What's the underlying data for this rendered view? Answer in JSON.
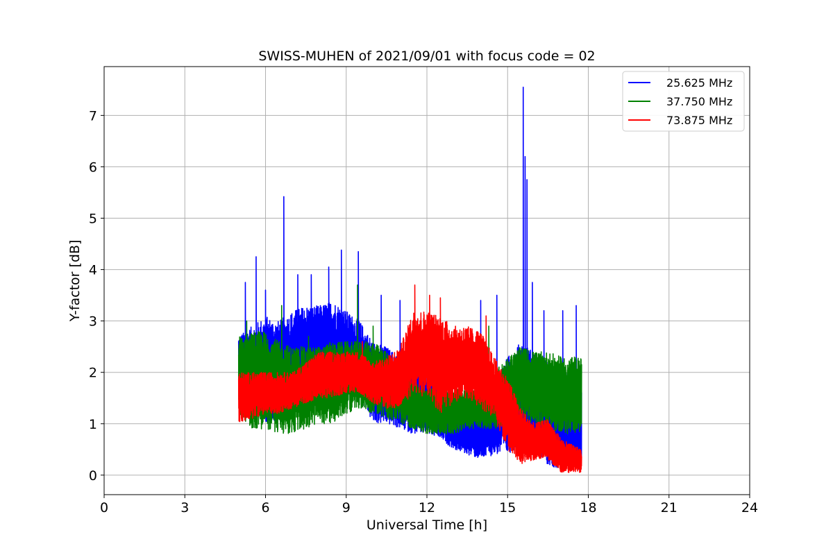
{
  "chart_data": {
    "type": "line",
    "title": "SWISS-MUHEN of 2021/09/01 with focus code = 02",
    "xlabel": "Universal Time [h]",
    "ylabel": "Y-factor [dB]",
    "xlim": [
      0,
      24
    ],
    "ylim": [
      -0.38,
      7.95
    ],
    "xticks": [
      0,
      3,
      6,
      9,
      12,
      15,
      18,
      21,
      24
    ],
    "xtick_labels": [
      "0",
      "3",
      "6",
      "9",
      "12",
      "15",
      "18",
      "21",
      "24"
    ],
    "yticks": [
      0,
      1,
      2,
      3,
      4,
      5,
      6,
      7
    ],
    "ytick_labels": [
      "0",
      "1",
      "2",
      "3",
      "4",
      "5",
      "6",
      "7"
    ],
    "grid": true,
    "legend_position": "top-right",
    "series": [
      {
        "name": "25.625 MHz",
        "color": "#0000ff",
        "x_range": [
          5.0,
          17.75
        ],
        "band": [
          [
            5.0,
            1.9,
            2.7
          ],
          [
            5.5,
            1.2,
            2.9
          ],
          [
            6.0,
            1.0,
            3.1
          ],
          [
            6.5,
            1.0,
            3.0
          ],
          [
            7.0,
            1.2,
            3.2
          ],
          [
            7.5,
            1.5,
            3.3
          ],
          [
            8.0,
            1.6,
            3.3
          ],
          [
            8.5,
            1.6,
            3.4
          ],
          [
            9.0,
            1.6,
            3.2
          ],
          [
            9.5,
            1.5,
            3.0
          ],
          [
            10.0,
            1.0,
            2.6
          ],
          [
            10.5,
            1.0,
            2.5
          ],
          [
            11.0,
            0.9,
            2.3
          ],
          [
            11.5,
            0.8,
            2.2
          ],
          [
            12.0,
            0.8,
            2.0
          ],
          [
            12.5,
            0.7,
            1.8
          ],
          [
            13.0,
            0.5,
            1.6
          ],
          [
            13.5,
            0.4,
            1.5
          ],
          [
            14.0,
            0.3,
            1.5
          ],
          [
            14.5,
            0.4,
            1.8
          ],
          [
            15.0,
            0.4,
            2.3
          ],
          [
            15.5,
            0.6,
            2.6
          ],
          [
            16.0,
            0.5,
            2.4
          ],
          [
            16.5,
            0.2,
            2.2
          ],
          [
            17.0,
            0.1,
            2.0
          ],
          [
            17.75,
            0.1,
            2.0
          ]
        ],
        "spikes": [
          [
            5.25,
            3.75
          ],
          [
            5.65,
            4.25
          ],
          [
            6.0,
            3.6
          ],
          [
            6.68,
            5.42
          ],
          [
            7.2,
            3.9
          ],
          [
            7.7,
            3.9
          ],
          [
            8.35,
            4.05
          ],
          [
            8.82,
            4.38
          ],
          [
            9.45,
            4.35
          ],
          [
            10.3,
            3.5
          ],
          [
            11.0,
            3.4
          ],
          [
            14.0,
            3.4
          ],
          [
            14.6,
            3.5
          ],
          [
            15.58,
            7.55
          ],
          [
            15.65,
            6.2
          ],
          [
            15.72,
            5.75
          ],
          [
            15.92,
            3.75
          ],
          [
            16.35,
            3.2
          ],
          [
            17.05,
            3.2
          ],
          [
            17.55,
            3.3
          ]
        ]
      },
      {
        "name": "37.750 MHz",
        "color": "#008000",
        "x_range": [
          5.0,
          17.75
        ],
        "band": [
          [
            5.0,
            1.2,
            2.7
          ],
          [
            5.5,
            0.9,
            2.8
          ],
          [
            6.0,
            0.9,
            2.8
          ],
          [
            6.5,
            0.8,
            2.6
          ],
          [
            7.0,
            0.8,
            2.5
          ],
          [
            7.5,
            0.9,
            2.5
          ],
          [
            8.0,
            1.0,
            2.5
          ],
          [
            8.5,
            1.0,
            2.6
          ],
          [
            9.0,
            1.2,
            2.6
          ],
          [
            9.5,
            1.3,
            2.6
          ],
          [
            10.0,
            1.2,
            2.6
          ],
          [
            10.5,
            1.1,
            2.4
          ],
          [
            11.0,
            1.0,
            2.1
          ],
          [
            11.5,
            0.9,
            1.8
          ],
          [
            12.0,
            0.8,
            1.7
          ],
          [
            12.5,
            0.8,
            1.7
          ],
          [
            13.0,
            0.8,
            1.7
          ],
          [
            13.5,
            0.9,
            1.7
          ],
          [
            14.0,
            0.9,
            1.8
          ],
          [
            14.5,
            0.9,
            2.0
          ],
          [
            15.0,
            1.0,
            2.3
          ],
          [
            15.5,
            1.1,
            2.5
          ],
          [
            16.0,
            1.0,
            2.4
          ],
          [
            16.5,
            0.9,
            2.4
          ],
          [
            17.0,
            0.8,
            2.3
          ],
          [
            17.75,
            0.8,
            2.3
          ]
        ],
        "spikes": [
          [
            5.3,
            3.0
          ],
          [
            6.6,
            3.3
          ],
          [
            7.6,
            2.7
          ],
          [
            9.42,
            3.7
          ],
          [
            10.0,
            2.9
          ],
          [
            14.3,
            2.9
          ]
        ]
      },
      {
        "name": "73.875 MHz",
        "color": "#ff0000",
        "x_range": [
          5.0,
          17.75
        ],
        "band": [
          [
            5.0,
            1.0,
            2.0
          ],
          [
            5.5,
            1.1,
            2.0
          ],
          [
            6.0,
            1.2,
            2.0
          ],
          [
            6.5,
            1.2,
            2.0
          ],
          [
            7.0,
            1.3,
            2.0
          ],
          [
            7.5,
            1.4,
            2.2
          ],
          [
            8.0,
            1.5,
            2.4
          ],
          [
            8.5,
            1.5,
            2.4
          ],
          [
            9.0,
            1.6,
            2.4
          ],
          [
            9.5,
            1.6,
            2.4
          ],
          [
            10.0,
            1.4,
            2.2
          ],
          [
            10.5,
            1.3,
            2.3
          ],
          [
            11.0,
            1.3,
            2.5
          ],
          [
            11.5,
            1.6,
            3.2
          ],
          [
            12.0,
            1.5,
            3.2
          ],
          [
            12.5,
            1.2,
            3.1
          ],
          [
            13.0,
            1.4,
            2.9
          ],
          [
            13.5,
            1.5,
            2.9
          ],
          [
            14.0,
            1.3,
            2.8
          ],
          [
            14.5,
            1.1,
            2.3
          ],
          [
            15.0,
            0.5,
            1.9
          ],
          [
            15.5,
            0.2,
            1.3
          ],
          [
            16.0,
            0.3,
            1.0
          ],
          [
            16.5,
            0.3,
            1.1
          ],
          [
            17.0,
            0.05,
            0.7
          ],
          [
            17.75,
            0.05,
            0.5
          ]
        ],
        "spikes": [
          [
            9.6,
            2.6
          ],
          [
            11.55,
            3.7
          ],
          [
            12.1,
            3.5
          ],
          [
            12.5,
            3.45
          ],
          [
            14.2,
            3.1
          ]
        ]
      }
    ]
  }
}
